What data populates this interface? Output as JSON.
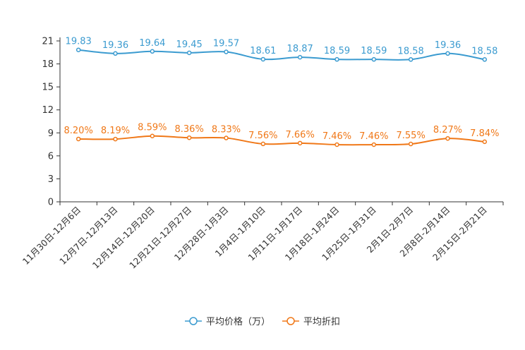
{
  "chart_data": {
    "type": "line",
    "categories": [
      "11月30日-12月6日",
      "12月7日-12月13日",
      "12月14日-12月20日",
      "12月21日-12月27日",
      "12月28日-1月3日",
      "1月4日-1月10日",
      "1月11日-1月17日",
      "1月18日-1月24日",
      "1月25日-1月31日",
      "2月1日-2月7日",
      "2月8日-2月14日",
      "2月15日-2月21日"
    ],
    "yticks": [
      "0",
      "3",
      "6",
      "9",
      "12",
      "15",
      "18",
      "21"
    ],
    "ylim": [
      0,
      21
    ],
    "series": [
      {
        "name": "平均价格（万）",
        "color": "#3b9bd0",
        "values": [
          19.83,
          19.36,
          19.64,
          19.45,
          19.57,
          18.61,
          18.87,
          18.59,
          18.59,
          18.58,
          19.36,
          18.58
        ],
        "labels": [
          "19.83",
          "19.36",
          "19.64",
          "19.45",
          "19.57",
          "18.61",
          "18.87",
          "18.59",
          "18.59",
          "18.58",
          "19.36",
          "18.58"
        ]
      },
      {
        "name": "平均折扣",
        "color": "#f07818",
        "values": [
          8.2,
          8.19,
          8.59,
          8.36,
          8.33,
          7.56,
          7.66,
          7.46,
          7.46,
          7.55,
          8.27,
          7.84
        ],
        "labels": [
          "8.20%",
          "8.19%",
          "8.59%",
          "8.36%",
          "8.33%",
          "7.56%",
          "7.66%",
          "7.46%",
          "7.46%",
          "7.55%",
          "8.27%",
          "7.84%"
        ]
      }
    ]
  }
}
